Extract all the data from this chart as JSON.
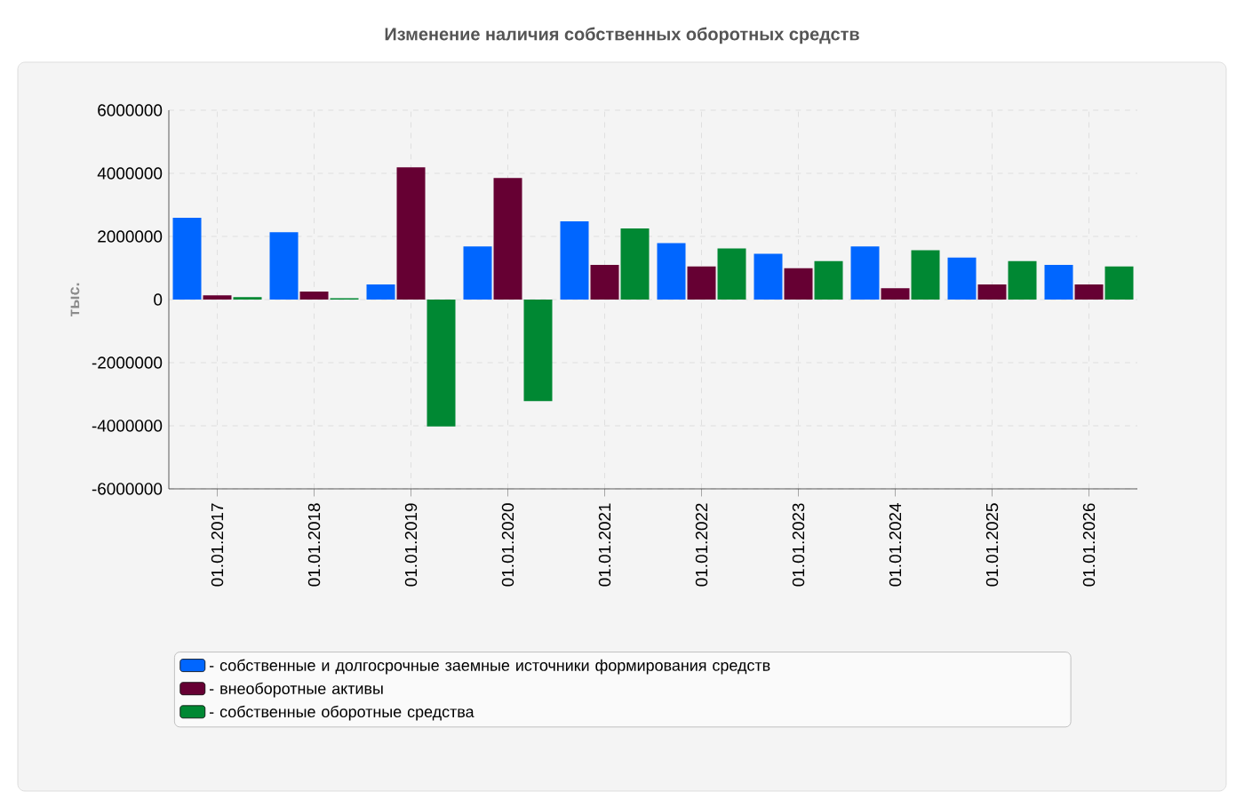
{
  "chart_data": {
    "type": "bar",
    "title": "Изменение наличия собственных оборотных средств",
    "ylabel": "тыс.",
    "categories": [
      "01.01.2017",
      "01.01.2018",
      "01.01.2019",
      "01.01.2020",
      "01.01.2021",
      "01.01.2022",
      "01.01.2023",
      "01.01.2024",
      "01.01.2025",
      "01.01.2026"
    ],
    "series": [
      {
        "name": "- собственные и долгосрочные заемные источники формирования средств",
        "color": "#0066ff",
        "values": [
          2590000,
          2130000,
          480000,
          1680000,
          2480000,
          1790000,
          1450000,
          1680000,
          1330000,
          1100000
        ]
      },
      {
        "name": "- внеоборотные активы",
        "color": "#660033",
        "values": [
          130000,
          250000,
          4190000,
          3850000,
          1100000,
          1050000,
          990000,
          360000,
          480000,
          480000
        ]
      },
      {
        "name": "- собственные оборотные средства",
        "color": "#008833",
        "values": [
          80000,
          40000,
          -4020000,
          -3220000,
          2250000,
          1620000,
          1220000,
          1560000,
          1220000,
          1050000
        ]
      }
    ],
    "ylim": [
      -6000000,
      6000000
    ],
    "yticks": [
      -6000000,
      -4000000,
      -2000000,
      0,
      2000000,
      4000000,
      6000000
    ],
    "grid": true,
    "legend": "bottom"
  }
}
